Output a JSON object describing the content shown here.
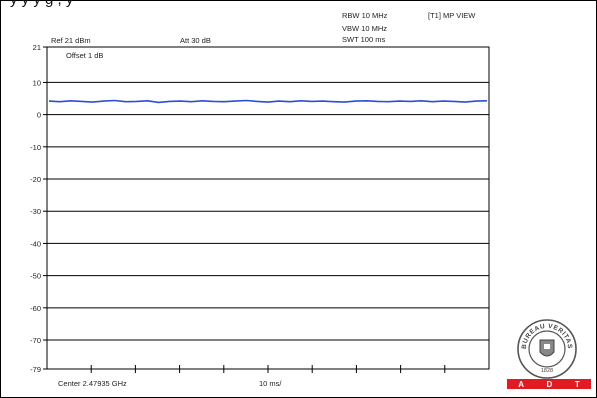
{
  "top_text": "y y y   g   ,  y",
  "header": {
    "ref": "Ref 21 dBm",
    "att": "Att  30 dB",
    "rbw": "RBW 10 MHz",
    "vbw": "VBW 10 MHz",
    "swt": "SWT 100 ms",
    "trace_mode": "[T1] MP VIEW",
    "offset": "Offset 1 dB"
  },
  "footer": {
    "center": "Center 2.47935 GHz",
    "sweep": "10 ms/"
  },
  "logo": {
    "seal_text": "BUREAU VERITAS",
    "seal_year": "1828",
    "bar_letters": [
      "A",
      "D",
      "T"
    ]
  },
  "colors": {
    "trace": "#2a4fd6",
    "grid": "#000000",
    "logo_red": "#e01b22"
  },
  "chart_data": {
    "type": "line",
    "ylim": [
      -79,
      21
    ],
    "yticks": [
      21,
      10,
      0,
      -10,
      -20,
      -30,
      -40,
      -50,
      -60,
      -70,
      -79
    ],
    "ytick_labels": [
      "21",
      "10",
      "0",
      "-10",
      "-20",
      "-30",
      "-40",
      "-50",
      "-60",
      "-70",
      "-79"
    ],
    "x_divisions": 10,
    "grid": true,
    "series": [
      {
        "values": [
          4.2,
          4.0,
          4.3,
          4.1,
          3.9,
          4.2,
          4.4,
          4.0,
          4.1,
          4.3,
          3.8,
          4.1,
          4.2,
          4.0,
          4.3,
          4.1,
          4.0,
          4.2,
          4.4,
          4.1,
          3.9,
          4.2,
          4.0,
          4.3,
          4.1,
          4.2,
          4.0,
          3.9,
          4.2,
          4.3,
          4.1,
          4.0,
          4.2,
          4.1,
          4.3,
          4.0,
          4.2,
          4.1,
          3.9,
          4.2,
          4.3
        ]
      }
    ]
  }
}
